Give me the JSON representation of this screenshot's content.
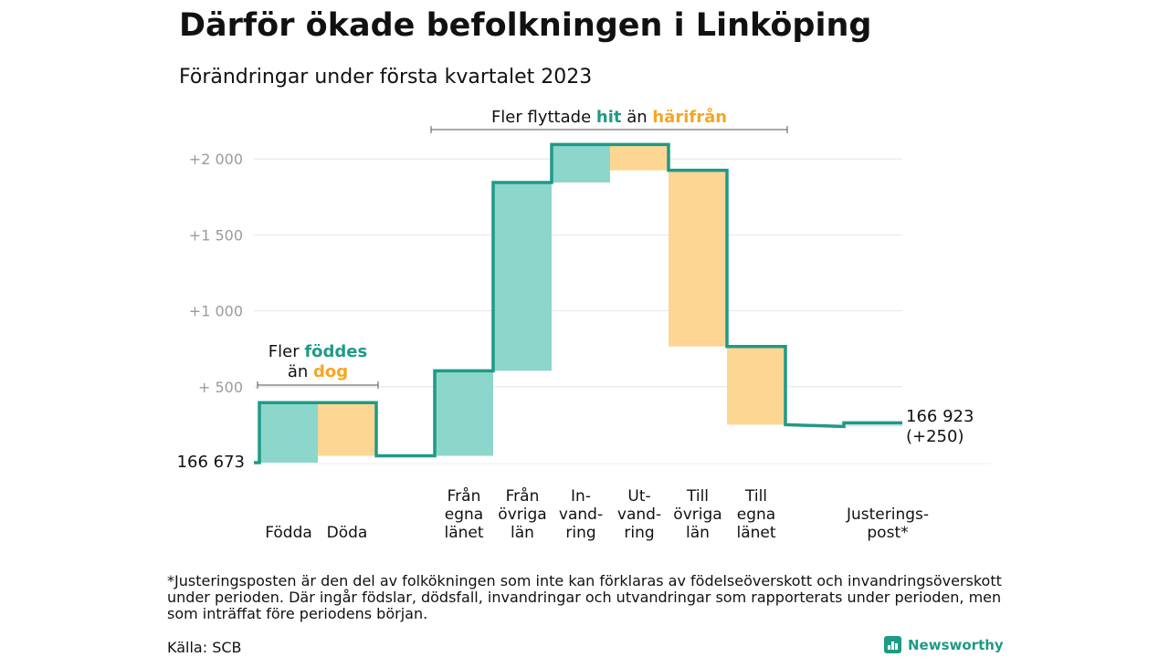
{
  "header": {
    "title": "Därför ökade befolkningen i Linköping",
    "subtitle": "Förändringar under första kvartalet 2023"
  },
  "colors": {
    "in": "#8dd6cc",
    "out": "#fcd692",
    "line": "#1f9a86",
    "accent_out": "#f5a623",
    "grid": "#e4e4e4",
    "tick": "#9b9b9b"
  },
  "chart_data": {
    "type": "waterfall",
    "title": "Därför ökade befolkningen i Linköping",
    "subtitle": "Förändringar under första kvartalet 2023",
    "start_value": 166673,
    "start_label": "166 673",
    "end_label_line1": "166 923",
    "end_label_line2": "(+250)",
    "ylim": [
      0,
      2100
    ],
    "yticks": [
      {
        "value": 500,
        "label": "+ 500"
      },
      {
        "value": 1000,
        "label": "+1 000"
      },
      {
        "value": 1500,
        "label": "+1 500"
      },
      {
        "value": 2000,
        "label": "+2 000"
      }
    ],
    "steps": [
      {
        "label_lines": [
          "Födda"
        ],
        "change": 395,
        "kind": "in"
      },
      {
        "label_lines": [
          "Döda"
        ],
        "change": -350,
        "kind": "out"
      },
      {
        "label_lines": [
          "Från",
          "egna",
          "länet"
        ],
        "change": 560,
        "kind": "in"
      },
      {
        "label_lines": [
          "Från",
          "övriga",
          "län"
        ],
        "change": 1240,
        "kind": "in"
      },
      {
        "label_lines": [
          "In-",
          "vand-",
          "ring"
        ],
        "change": 250,
        "kind": "in"
      },
      {
        "label_lines": [
          "Ut-",
          "vand-",
          "ring"
        ],
        "change": -170,
        "kind": "out"
      },
      {
        "label_lines": [
          "Till",
          "övriga",
          "län"
        ],
        "change": -1160,
        "kind": "out"
      },
      {
        "label_lines": [
          "Till",
          "egna",
          "länet"
        ],
        "change": -515,
        "kind": "out"
      },
      {
        "label_lines": [
          "Justerings-",
          "post*"
        ],
        "change": 0,
        "kind": "adjust"
      }
    ],
    "groups": [
      {
        "lines": [
          [
            {
              "text": "Fler ",
              "kind": "plain"
            },
            {
              "text": "föddes",
              "kind": "in"
            }
          ],
          [
            {
              "text": "än ",
              "kind": "plain"
            },
            {
              "text": "dog",
              "kind": "out"
            }
          ]
        ]
      },
      {
        "lines": [
          [
            {
              "text": "Fler flyttade ",
              "kind": "plain"
            },
            {
              "text": "hit",
              "kind": "in"
            },
            {
              "text": " än ",
              "kind": "plain"
            },
            {
              "text": "härifrån",
              "kind": "out"
            }
          ]
        ]
      }
    ]
  },
  "footer": {
    "footnote": "*Justeringsposten är den del av folkökningen som inte kan förklaras av födelseöverskott och invandringsöverskott under perioden. Där ingår födslar, dödsfall, invandringar och utvandringar som rapporterats under perioden, men som inträffat före periodens början.",
    "source": "Källa: SCB",
    "brand": "Newsworthy",
    "brand_icon": "bar-chart-icon"
  }
}
